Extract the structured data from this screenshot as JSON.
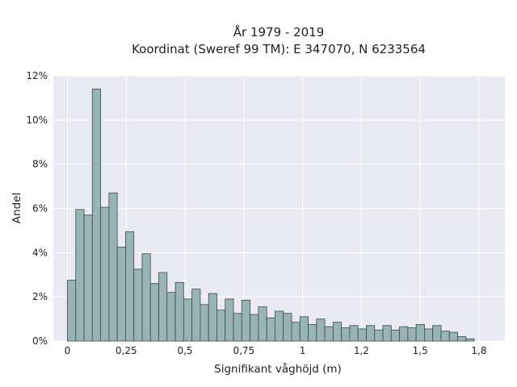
{
  "chart_data": {
    "type": "bar",
    "title_lines": [
      "År 1979 - 2019",
      "Koordinat (Sweref 99 TM): E 347070, N 6233564"
    ],
    "xlabel": "Signifikant våghöjd (m)",
    "ylabel": "Andel",
    "bin_width": 0.0353,
    "x_start": 0.0,
    "xlim": [
      -0.06,
      1.86
    ],
    "ylim": [
      0,
      12
    ],
    "x_ticks": [
      0,
      0.25,
      0.5,
      0.75,
      1,
      1.25,
      1.5,
      1.75
    ],
    "x_tick_labels": [
      "0",
      "0,25",
      "0,5",
      "0,75",
      "1",
      "1,2",
      "1,5",
      "1,8"
    ],
    "y_ticks": [
      0,
      2,
      4,
      6,
      8,
      10,
      12
    ],
    "y_tick_labels": [
      "0%",
      "2%",
      "4%",
      "6%",
      "8%",
      "10%",
      "12%"
    ],
    "values": [
      2.75,
      5.95,
      5.7,
      11.4,
      6.05,
      6.7,
      4.25,
      4.95,
      3.25,
      3.95,
      2.6,
      3.1,
      2.2,
      2.65,
      1.9,
      2.35,
      1.65,
      2.15,
      1.4,
      1.9,
      1.25,
      1.85,
      1.2,
      1.55,
      1.05,
      1.35,
      1.25,
      0.85,
      1.1,
      0.75,
      1.0,
      0.65,
      0.85,
      0.6,
      0.7,
      0.55,
      0.7,
      0.5,
      0.7,
      0.5,
      0.65,
      0.6,
      0.75,
      0.55,
      0.7,
      0.45,
      0.4,
      0.2,
      0.1
    ],
    "grid": true,
    "colors": {
      "background": "#eaeaf2",
      "bar_fill": "#98b5b3",
      "bar_edge": "#3c4a49",
      "grid": "#ffffff"
    }
  }
}
